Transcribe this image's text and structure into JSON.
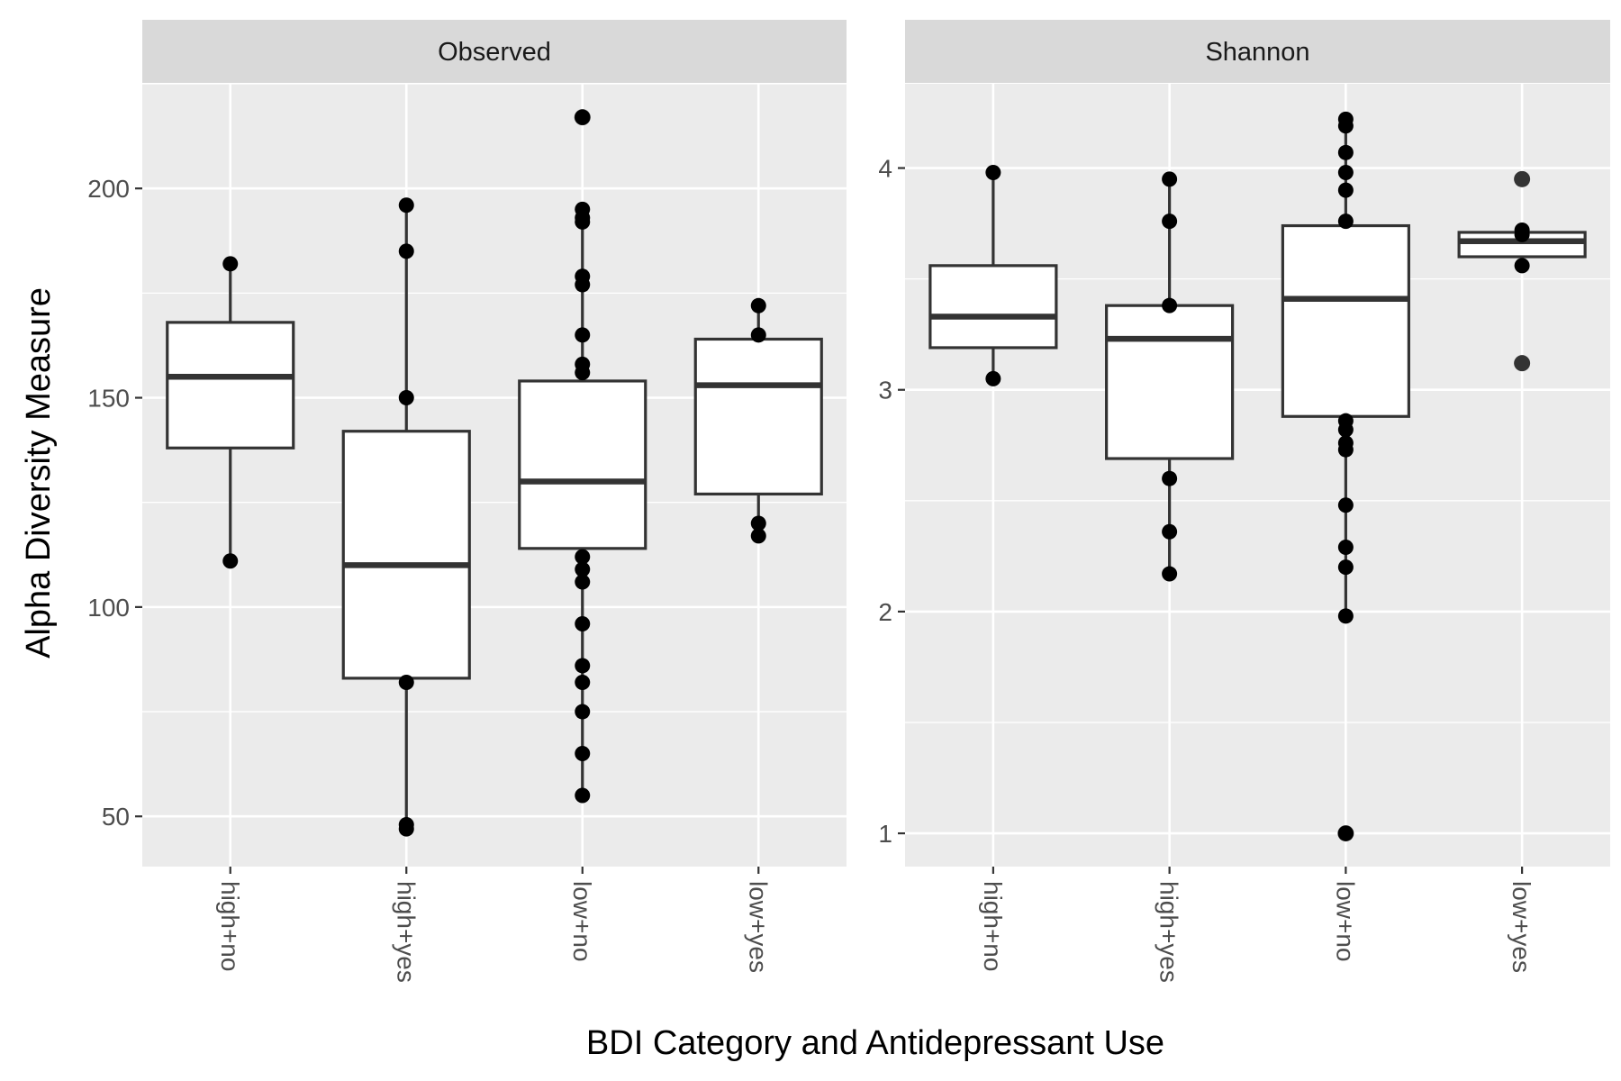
{
  "chart_data": {
    "type": "box",
    "xlabel": "BDI Category and Antidepressant Use",
    "ylabel": "Alpha Diversity Measure",
    "categories": [
      "high+no",
      "high+yes",
      "low+no",
      "low+yes"
    ],
    "panels": [
      {
        "title": "Observed",
        "ylim": [
          38,
          225
        ],
        "yticks": [
          50,
          100,
          150,
          200
        ],
        "boxes": [
          {
            "category": "high+no",
            "q1": 138,
            "median": 155,
            "q3": 168,
            "whisker_low": 111,
            "whisker_high": 182,
            "outliers": []
          },
          {
            "category": "high+yes",
            "q1": 83,
            "median": 110,
            "q3": 142,
            "whisker_low": 47,
            "whisker_high": 196,
            "outliers": []
          },
          {
            "category": "low+no",
            "q1": 114,
            "median": 130,
            "q3": 154,
            "whisker_low": 55,
            "whisker_high": 195,
            "outliers": [
              217
            ]
          },
          {
            "category": "low+yes",
            "q1": 127,
            "median": 153,
            "q3": 164,
            "whisker_low": 117,
            "whisker_high": 172,
            "outliers": []
          }
        ],
        "points": [
          {
            "category": "high+no",
            "values": [
              182,
              111
            ]
          },
          {
            "category": "high+yes",
            "values": [
              196,
              185,
              150,
              82,
              48,
              47
            ]
          },
          {
            "category": "low+no",
            "values": [
              217,
              195,
              193,
              192,
              179,
              177,
              165,
              158,
              156,
              112,
              109,
              106,
              96,
              86,
              82,
              75,
              65,
              55
            ]
          },
          {
            "category": "low+yes",
            "values": [
              172,
              165,
              120,
              117
            ]
          }
        ]
      },
      {
        "title": "Shannon",
        "ylim": [
          0.85,
          4.38
        ],
        "yticks": [
          1,
          2,
          3,
          4
        ],
        "boxes": [
          {
            "category": "high+no",
            "q1": 3.19,
            "median": 3.33,
            "q3": 3.56,
            "whisker_low": 3.05,
            "whisker_high": 3.98,
            "outliers": []
          },
          {
            "category": "high+yes",
            "q1": 2.69,
            "median": 3.23,
            "q3": 3.38,
            "whisker_low": 2.17,
            "whisker_high": 3.95,
            "outliers": []
          },
          {
            "category": "low+no",
            "q1": 2.88,
            "median": 3.41,
            "q3": 3.74,
            "whisker_low": 1.98,
            "whisker_high": 4.22,
            "outliers": [
              1.0
            ]
          },
          {
            "category": "low+yes",
            "q1": 3.6,
            "median": 3.67,
            "q3": 3.71,
            "whisker_low": 3.56,
            "whisker_high": 3.71,
            "outliers": [
              3.95,
              3.12
            ]
          }
        ],
        "points": [
          {
            "category": "high+no",
            "values": [
              3.98,
              3.05
            ]
          },
          {
            "category": "high+yes",
            "values": [
              3.95,
              3.76,
              3.38,
              2.6,
              2.36,
              2.17
            ]
          },
          {
            "category": "low+no",
            "values": [
              4.22,
              4.19,
              4.07,
              3.98,
              3.9,
              3.76,
              2.86,
              2.82,
              2.76,
              2.73,
              2.48,
              2.29,
              2.2,
              1.98,
              1.0
            ]
          },
          {
            "category": "low+yes",
            "values": [
              3.72,
              3.7,
              3.56
            ]
          }
        ]
      }
    ]
  }
}
